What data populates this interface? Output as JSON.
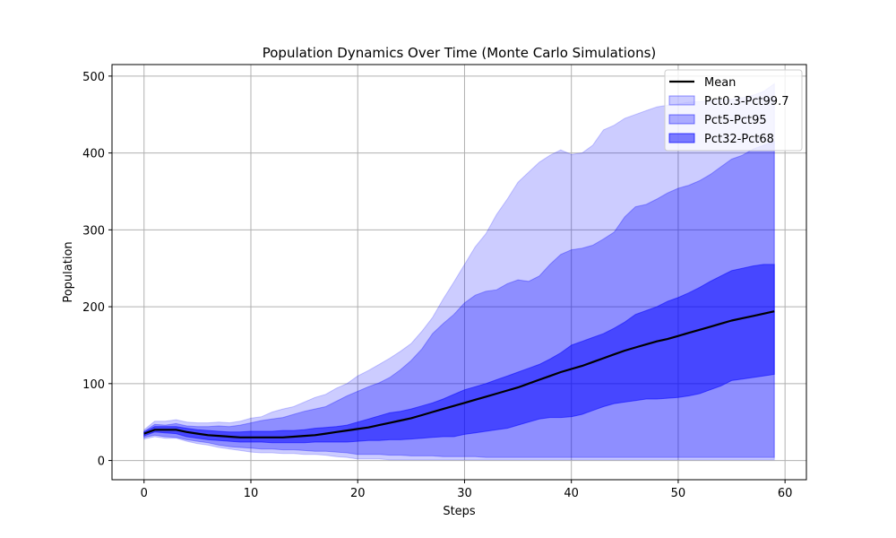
{
  "chart_data": {
    "type": "area",
    "title": "Population Dynamics Over Time (Monte Carlo Simulations)",
    "xlabel": "Steps",
    "ylabel": "Population",
    "xlim": [
      -3,
      62
    ],
    "ylim": [
      -25,
      515
    ],
    "xticks": [
      0,
      10,
      20,
      30,
      40,
      50,
      60
    ],
    "yticks": [
      0,
      100,
      200,
      300,
      400,
      500
    ],
    "grid": true,
    "legend_position": "top-right",
    "x": [
      0,
      1,
      2,
      3,
      4,
      5,
      6,
      7,
      8,
      9,
      10,
      11,
      12,
      13,
      14,
      15,
      16,
      17,
      18,
      19,
      20,
      21,
      22,
      23,
      24,
      25,
      26,
      27,
      28,
      29,
      30,
      31,
      32,
      33,
      34,
      35,
      36,
      37,
      38,
      39,
      40,
      41,
      42,
      43,
      44,
      45,
      46,
      47,
      48,
      49,
      50,
      51,
      52,
      53,
      54,
      55,
      56,
      57,
      58,
      59
    ],
    "series": [
      {
        "name": "Pct0.3-Pct99.7",
        "kind": "band",
        "color": "#0000ff",
        "alpha": 0.2,
        "lower": [
          28,
          31,
          29,
          29,
          25,
          22,
          20,
          17,
          15,
          13,
          11,
          10,
          10,
          9,
          9,
          8,
          8,
          7,
          5,
          4,
          2,
          2,
          2,
          1,
          1,
          1,
          1,
          1,
          1,
          1,
          1,
          1,
          1,
          1,
          1,
          1,
          1,
          1,
          1,
          1,
          1,
          1,
          1,
          1,
          1,
          1,
          1,
          1,
          1,
          1,
          1,
          1,
          1,
          1,
          1,
          1,
          1,
          1,
          1,
          1
        ],
        "upper": [
          40,
          51,
          51,
          53,
          50,
          49,
          49,
          50,
          49,
          51,
          55,
          57,
          63,
          67,
          70,
          76,
          82,
          86,
          94,
          100,
          110,
          117,
          125,
          133,
          142,
          152,
          168,
          186,
          210,
          232,
          255,
          278,
          295,
          320,
          340,
          362,
          375,
          388,
          397,
          404,
          398,
          400,
          410,
          430,
          436,
          445,
          450,
          455,
          460,
          462,
          464,
          466,
          467,
          468,
          469,
          470,
          472,
          475,
          480,
          490
        ]
      },
      {
        "name": "Pct5-Pct95",
        "kind": "band",
        "color": "#0000ff",
        "alpha": 0.3,
        "lower": [
          30,
          33,
          31,
          30,
          27,
          25,
          23,
          20,
          18,
          17,
          16,
          15,
          15,
          14,
          14,
          13,
          12,
          12,
          11,
          10,
          8,
          8,
          8,
          7,
          7,
          6,
          6,
          6,
          5,
          5,
          5,
          5,
          4,
          4,
          4,
          4,
          4,
          4,
          4,
          4,
          4,
          4,
          4,
          4,
          4,
          4,
          4,
          4,
          4,
          4,
          4,
          4,
          4,
          4,
          4,
          4,
          4,
          4,
          4,
          4
        ],
        "upper": [
          38,
          47,
          46,
          48,
          45,
          44,
          44,
          45,
          44,
          46,
          49,
          52,
          54,
          56,
          60,
          64,
          67,
          70,
          77,
          84,
          90,
          96,
          101,
          108,
          118,
          130,
          145,
          165,
          178,
          190,
          205,
          215,
          220,
          222,
          230,
          235,
          233,
          240,
          255,
          268,
          274,
          276,
          280,
          288,
          297,
          317,
          330,
          333,
          340,
          348,
          354,
          358,
          364,
          372,
          382,
          392,
          397,
          405,
          410,
          415
        ]
      },
      {
        "name": "Pct32-Pct68",
        "kind": "band",
        "color": "#0000ff",
        "alpha": 0.5,
        "lower": [
          32,
          37,
          36,
          35,
          31,
          29,
          27,
          26,
          25,
          24,
          24,
          24,
          23,
          23,
          23,
          23,
          24,
          24,
          24,
          24,
          25,
          26,
          26,
          27,
          27,
          28,
          29,
          30,
          31,
          31,
          34,
          36,
          38,
          40,
          42,
          46,
          50,
          54,
          56,
          56,
          57,
          60,
          65,
          70,
          74,
          76,
          78,
          80,
          80,
          81,
          82,
          84,
          87,
          92,
          97,
          104,
          106,
          108,
          110,
          112
        ],
        "upper": [
          37,
          44,
          44,
          44,
          42,
          40,
          39,
          38,
          37,
          37,
          38,
          38,
          38,
          39,
          39,
          40,
          42,
          43,
          44,
          46,
          50,
          54,
          58,
          62,
          64,
          67,
          71,
          75,
          80,
          86,
          92,
          96,
          100,
          105,
          110,
          115,
          120,
          125,
          132,
          140,
          150,
          155,
          160,
          165,
          172,
          180,
          190,
          195,
          200,
          207,
          212,
          218,
          225,
          233,
          240,
          247,
          250,
          253,
          255,
          255
        ]
      },
      {
        "name": "Mean",
        "kind": "line",
        "color": "#000000",
        "values": [
          35,
          40,
          40,
          40,
          37,
          35,
          33,
          32,
          31,
          30,
          30,
          30,
          30,
          30,
          31,
          32,
          33,
          35,
          37,
          39,
          41,
          43,
          46,
          49,
          52,
          55,
          59,
          63,
          67,
          71,
          75,
          79,
          83,
          87,
          91,
          95,
          100,
          105,
          110,
          115,
          119,
          123,
          128,
          133,
          138,
          143,
          147,
          151,
          155,
          158,
          162,
          166,
          170,
          174,
          178,
          182,
          185,
          188,
          191,
          194
        ]
      }
    ],
    "legend": [
      "Mean",
      "Pct0.3-Pct99.7",
      "Pct5-Pct95",
      "Pct32-Pct68"
    ]
  }
}
